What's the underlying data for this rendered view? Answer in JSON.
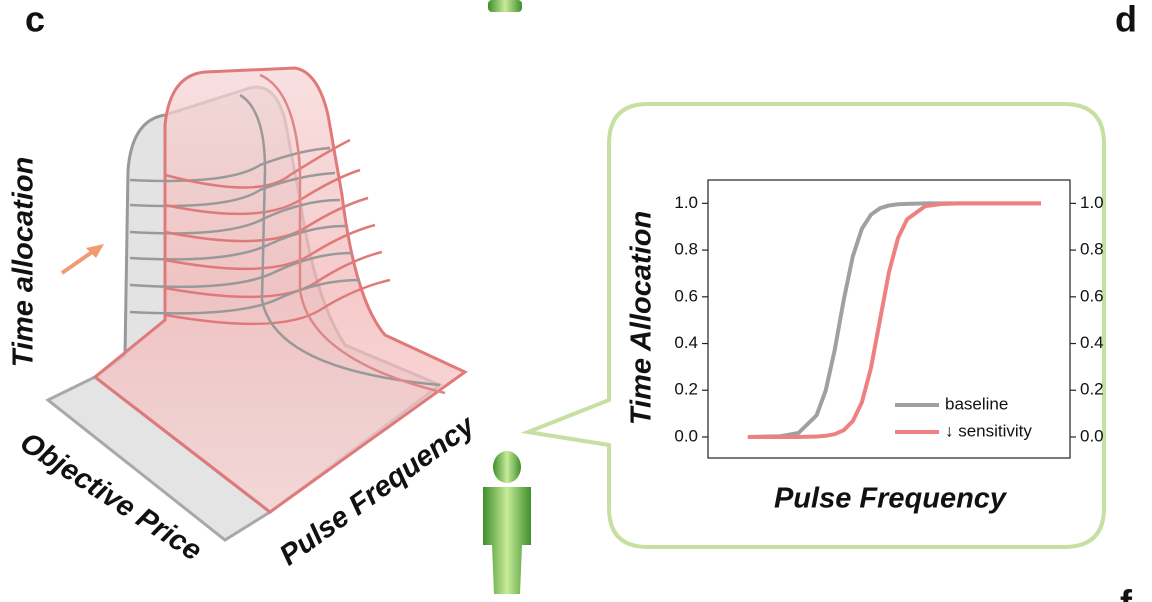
{
  "panel_labels": [
    "c",
    "d",
    "f"
  ],
  "surface": {
    "z_label": "Time allocation",
    "x_label": "Objective Price",
    "y_label": "Pulse Frequency"
  },
  "chart_data": {
    "type": "line",
    "y_label": "Time Allocation",
    "x_label": "Pulse Frequency",
    "x": [
      1.1,
      2,
      2.5,
      3,
      3.25,
      3.5,
      3.75,
      4,
      4.25,
      4.5,
      4.75,
      5,
      5.25,
      5.5,
      6,
      6.5,
      7,
      8,
      9.2
    ],
    "xlim": [
      0,
      10
    ],
    "series": [
      {
        "name": "baseline",
        "color": "#a0a0a4",
        "values": [
          0,
          0.003,
          0.017,
          0.093,
          0.198,
          0.372,
          0.587,
          0.773,
          0.891,
          0.951,
          0.979,
          0.991,
          0.996,
          0.998,
          1,
          1,
          1,
          1,
          1
        ]
      },
      {
        "name": "↓ sensitivity",
        "color": "#ee8080",
        "values": [
          0,
          0,
          0,
          0.002,
          0.005,
          0.012,
          0.029,
          0.068,
          0.148,
          0.294,
          0.5,
          0.706,
          0.852,
          0.932,
          0.988,
          0.998,
          1,
          1,
          1
        ]
      }
    ],
    "ylim": [
      -0.09,
      1.1
    ],
    "yticks": [
      {
        "value": 0,
        "label": "0.0"
      },
      {
        "value": 0.2,
        "label": "0.2"
      },
      {
        "value": 0.4,
        "label": "0.4"
      },
      {
        "value": 0.6,
        "label": "0.6"
      },
      {
        "value": 0.8,
        "label": "0.8"
      },
      {
        "value": 1,
        "label": "1.0"
      }
    ],
    "y2lim": [
      -0.09,
      1.1
    ],
    "y2ticks": [
      {
        "value": 0,
        "label": "0.0"
      },
      {
        "value": 0.2,
        "label": "0.2"
      },
      {
        "value": 0.4,
        "label": "0.4"
      },
      {
        "value": 0.6,
        "label": "0.6"
      },
      {
        "value": 0.8,
        "label": "0.8"
      },
      {
        "value": 1,
        "label": "1.0"
      }
    ],
    "legend": "lower right"
  }
}
